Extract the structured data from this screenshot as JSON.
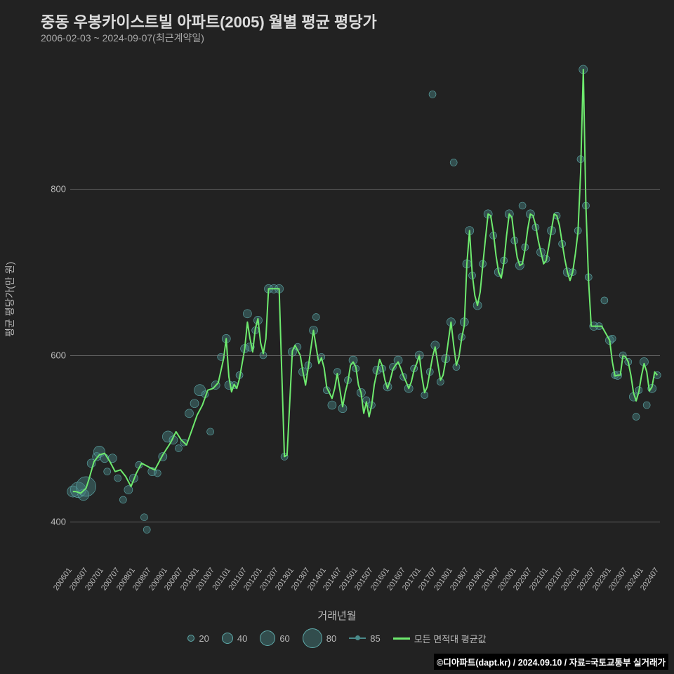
{
  "title": "중동 우봉카이스트빌 아파트(2005) 월별 평균 평당가",
  "subtitle": "2006-02-03 ~ 2024-09-07(최근계약일)",
  "ylabel": "평균 평당가(만 원)",
  "xlabel": "거래년월",
  "credit": "©디아파트(dapt.kr) / 2024.09.10 / 자료=국토교통부 실거래가",
  "chart": {
    "type": "line+scatter",
    "background": "#222222",
    "grid_color": "#888888",
    "ylim": [
      360,
      960
    ],
    "yticks": [
      400,
      600,
      800
    ],
    "x_start": "200601",
    "x_end": "202409",
    "xtick_labels": [
      "200601",
      "200607",
      "200701",
      "200707",
      "200801",
      "200807",
      "200901",
      "200907",
      "201001",
      "201007",
      "201101",
      "201107",
      "201201",
      "201207",
      "201301",
      "201307",
      "201401",
      "201407",
      "201501",
      "201507",
      "201601",
      "201607",
      "201701",
      "201707",
      "201801",
      "201807",
      "201901",
      "201907",
      "202001",
      "202007",
      "202101",
      "202107",
      "202201",
      "202207",
      "202301",
      "202307",
      "202401",
      "202407"
    ],
    "line_color": "#6eea6e",
    "scatter_color": "#4a8a8a",
    "scatter_series_label": "85",
    "line_series_label": "모든 면적대 평균값",
    "size_legend": [
      {
        "label": "20",
        "r": 5
      },
      {
        "label": "40",
        "r": 8
      },
      {
        "label": "60",
        "r": 11
      },
      {
        "label": "80",
        "r": 14
      }
    ],
    "line_points": [
      [
        1,
        436
      ],
      [
        2,
        436
      ],
      [
        4,
        434
      ],
      [
        6,
        440
      ],
      [
        7,
        450
      ],
      [
        9,
        472
      ],
      [
        11,
        480
      ],
      [
        13,
        482
      ],
      [
        15,
        472
      ],
      [
        17,
        460
      ],
      [
        19,
        462
      ],
      [
        21,
        454
      ],
      [
        23,
        442
      ],
      [
        25,
        458
      ],
      [
        27,
        470
      ],
      [
        30,
        465
      ],
      [
        32,
        462
      ],
      [
        35,
        480
      ],
      [
        38,
        495
      ],
      [
        40,
        508
      ],
      [
        42,
        498
      ],
      [
        44,
        492
      ],
      [
        46,
        510
      ],
      [
        48,
        528
      ],
      [
        50,
        540
      ],
      [
        52,
        558
      ],
      [
        54,
        560
      ],
      [
        56,
        567
      ],
      [
        58,
        596
      ],
      [
        59,
        620
      ],
      [
        60,
        574
      ],
      [
        61,
        556
      ],
      [
        62,
        565
      ],
      [
        63,
        560
      ],
      [
        64,
        572
      ],
      [
        66,
        608
      ],
      [
        67,
        640
      ],
      [
        68,
        620
      ],
      [
        69,
        604
      ],
      [
        70,
        632
      ],
      [
        71,
        644
      ],
      [
        72,
        615
      ],
      [
        73,
        602
      ],
      [
        74,
        620
      ],
      [
        75,
        680
      ],
      [
        77,
        680
      ],
      [
        79,
        680
      ],
      [
        81,
        478
      ],
      [
        82,
        480
      ],
      [
        84,
        605
      ],
      [
        85,
        612
      ],
      [
        86,
        606
      ],
      [
        87,
        600
      ],
      [
        88,
        580
      ],
      [
        89,
        564
      ],
      [
        90,
        585
      ],
      [
        91,
        608
      ],
      [
        92,
        630
      ],
      [
        93,
        610
      ],
      [
        94,
        590
      ],
      [
        95,
        597
      ],
      [
        96,
        585
      ],
      [
        97,
        561
      ],
      [
        98,
        555
      ],
      [
        99,
        548
      ],
      [
        100,
        560
      ],
      [
        101,
        578
      ],
      [
        102,
        558
      ],
      [
        103,
        538
      ],
      [
        104,
        555
      ],
      [
        105,
        568
      ],
      [
        106,
        588
      ],
      [
        107,
        592
      ],
      [
        108,
        586
      ],
      [
        109,
        564
      ],
      [
        110,
        555
      ],
      [
        111,
        530
      ],
      [
        112,
        544
      ],
      [
        113,
        526
      ],
      [
        114,
        540
      ],
      [
        115,
        565
      ],
      [
        116,
        580
      ],
      [
        117,
        595
      ],
      [
        118,
        587
      ],
      [
        119,
        570
      ],
      [
        120,
        560
      ],
      [
        121,
        570
      ],
      [
        122,
        583
      ],
      [
        123,
        588
      ],
      [
        124,
        592
      ],
      [
        125,
        584
      ],
      [
        126,
        575
      ],
      [
        127,
        568
      ],
      [
        128,
        560
      ],
      [
        129,
        568
      ],
      [
        130,
        582
      ],
      [
        131,
        590
      ],
      [
        132,
        600
      ],
      [
        133,
        574
      ],
      [
        134,
        555
      ],
      [
        135,
        562
      ],
      [
        136,
        580
      ],
      [
        137,
        598
      ],
      [
        138,
        610
      ],
      [
        139,
        590
      ],
      [
        140,
        570
      ],
      [
        141,
        576
      ],
      [
        142,
        594
      ],
      [
        143,
        618
      ],
      [
        144,
        640
      ],
      [
        145,
        612
      ],
      [
        146,
        588
      ],
      [
        147,
        598
      ],
      [
        148,
        620
      ],
      [
        149,
        636
      ],
      [
        150,
        710
      ],
      [
        151,
        750
      ],
      [
        152,
        698
      ],
      [
        153,
        672
      ],
      [
        154,
        660
      ],
      [
        155,
        676
      ],
      [
        156,
        708
      ],
      [
        157,
        740
      ],
      [
        158,
        770
      ],
      [
        159,
        768
      ],
      [
        160,
        748
      ],
      [
        161,
        720
      ],
      [
        162,
        700
      ],
      [
        163,
        693
      ],
      [
        164,
        712
      ],
      [
        165,
        744
      ],
      [
        166,
        770
      ],
      [
        167,
        766
      ],
      [
        168,
        740
      ],
      [
        169,
        718
      ],
      [
        170,
        708
      ],
      [
        171,
        710
      ],
      [
        172,
        728
      ],
      [
        173,
        752
      ],
      [
        174,
        770
      ],
      [
        175,
        768
      ],
      [
        176,
        756
      ],
      [
        177,
        738
      ],
      [
        178,
        724
      ],
      [
        179,
        710
      ],
      [
        180,
        714
      ],
      [
        181,
        732
      ],
      [
        182,
        752
      ],
      [
        183,
        770
      ],
      [
        184,
        768
      ],
      [
        185,
        756
      ],
      [
        186,
        736
      ],
      [
        187,
        716
      ],
      [
        188,
        700
      ],
      [
        189,
        690
      ],
      [
        190,
        700
      ],
      [
        191,
        722
      ],
      [
        192,
        748
      ],
      [
        193,
        820
      ],
      [
        194,
        944
      ],
      [
        195,
        780
      ],
      [
        196,
        690
      ],
      [
        197,
        635
      ],
      [
        198,
        635
      ],
      [
        199,
        635
      ],
      [
        200,
        635
      ],
      [
        201,
        635
      ],
      [
        204,
        618
      ],
      [
        205,
        592
      ],
      [
        206,
        575
      ],
      [
        207,
        576
      ],
      [
        208,
        576
      ],
      [
        209,
        600
      ],
      [
        210,
        598
      ],
      [
        211,
        592
      ],
      [
        212,
        576
      ],
      [
        213,
        555
      ],
      [
        214,
        545
      ],
      [
        215,
        556
      ],
      [
        216,
        575
      ],
      [
        217,
        590
      ],
      [
        218,
        580
      ],
      [
        219,
        557
      ],
      [
        220,
        562
      ],
      [
        221,
        580
      ],
      [
        222,
        576
      ]
    ],
    "scatter_points": [
      [
        1,
        436,
        8
      ],
      [
        3,
        438,
        11
      ],
      [
        5,
        432,
        8
      ],
      [
        6,
        442,
        14
      ],
      [
        8,
        470,
        6
      ],
      [
        10,
        478,
        6
      ],
      [
        11,
        484,
        8
      ],
      [
        13,
        476,
        6
      ],
      [
        14,
        460,
        5
      ],
      [
        16,
        476,
        6
      ],
      [
        18,
        452,
        5
      ],
      [
        20,
        426,
        5
      ],
      [
        22,
        438,
        6
      ],
      [
        24,
        452,
        6
      ],
      [
        26,
        468,
        5
      ],
      [
        28,
        405,
        5
      ],
      [
        29,
        390,
        5
      ],
      [
        31,
        460,
        6
      ],
      [
        33,
        458,
        5
      ],
      [
        35,
        478,
        6
      ],
      [
        37,
        502,
        8
      ],
      [
        39,
        498,
        6
      ],
      [
        41,
        488,
        5
      ],
      [
        43,
        495,
        5
      ],
      [
        45,
        530,
        6
      ],
      [
        47,
        542,
        6
      ],
      [
        49,
        558,
        8
      ],
      [
        51,
        553,
        5
      ],
      [
        53,
        508,
        5
      ],
      [
        55,
        564,
        6
      ],
      [
        57,
        598,
        5
      ],
      [
        59,
        620,
        6
      ],
      [
        60,
        564,
        6
      ],
      [
        62,
        564,
        5
      ],
      [
        64,
        576,
        5
      ],
      [
        66,
        608,
        6
      ],
      [
        67,
        650,
        6
      ],
      [
        68,
        610,
        6
      ],
      [
        70,
        630,
        5
      ],
      [
        71,
        642,
        6
      ],
      [
        73,
        600,
        5
      ],
      [
        75,
        680,
        6
      ],
      [
        77,
        680,
        6
      ],
      [
        79,
        680,
        6
      ],
      [
        81,
        478,
        5
      ],
      [
        84,
        604,
        6
      ],
      [
        86,
        610,
        5
      ],
      [
        88,
        580,
        6
      ],
      [
        90,
        588,
        5
      ],
      [
        92,
        630,
        6
      ],
      [
        93,
        646,
        5
      ],
      [
        95,
        598,
        5
      ],
      [
        97,
        558,
        5
      ],
      [
        99,
        540,
        6
      ],
      [
        101,
        580,
        5
      ],
      [
        103,
        536,
        6
      ],
      [
        105,
        570,
        5
      ],
      [
        107,
        594,
        6
      ],
      [
        108,
        584,
        5
      ],
      [
        110,
        555,
        6
      ],
      [
        112,
        546,
        5
      ],
      [
        114,
        540,
        5
      ],
      [
        116,
        582,
        6
      ],
      [
        118,
        584,
        5
      ],
      [
        120,
        562,
        6
      ],
      [
        122,
        586,
        5
      ],
      [
        124,
        594,
        6
      ],
      [
        126,
        574,
        5
      ],
      [
        128,
        560,
        6
      ],
      [
        130,
        584,
        5
      ],
      [
        132,
        600,
        6
      ],
      [
        134,
        552,
        5
      ],
      [
        136,
        580,
        5
      ],
      [
        138,
        612,
        6
      ],
      [
        140,
        568,
        5
      ],
      [
        142,
        596,
        6
      ],
      [
        144,
        640,
        6
      ],
      [
        146,
        586,
        5
      ],
      [
        148,
        622,
        5
      ],
      [
        149,
        640,
        6
      ],
      [
        150,
        710,
        6
      ],
      [
        151,
        750,
        6
      ],
      [
        152,
        696,
        5
      ],
      [
        154,
        660,
        6
      ],
      [
        156,
        710,
        5
      ],
      [
        158,
        770,
        6
      ],
      [
        160,
        744,
        5
      ],
      [
        162,
        700,
        6
      ],
      [
        164,
        714,
        5
      ],
      [
        166,
        770,
        6
      ],
      [
        168,
        738,
        5
      ],
      [
        170,
        708,
        6
      ],
      [
        171,
        780,
        5
      ],
      [
        172,
        730,
        5
      ],
      [
        174,
        770,
        6
      ],
      [
        176,
        754,
        5
      ],
      [
        178,
        724,
        6
      ],
      [
        180,
        716,
        5
      ],
      [
        182,
        750,
        6
      ],
      [
        184,
        768,
        5
      ],
      [
        186,
        734,
        5
      ],
      [
        188,
        700,
        6
      ],
      [
        190,
        700,
        5
      ],
      [
        192,
        750,
        5
      ],
      [
        193,
        836,
        5
      ],
      [
        194,
        944,
        6
      ],
      [
        195,
        780,
        5
      ],
      [
        196,
        694,
        5
      ],
      [
        198,
        635,
        6
      ],
      [
        200,
        635,
        5
      ],
      [
        202,
        666,
        5
      ],
      [
        204,
        618,
        6
      ],
      [
        205,
        620,
        5
      ],
      [
        206,
        576,
        5
      ],
      [
        207,
        576,
        6
      ],
      [
        209,
        600,
        5
      ],
      [
        211,
        592,
        5
      ],
      [
        213,
        550,
        6
      ],
      [
        214,
        526,
        5
      ],
      [
        215,
        558,
        5
      ],
      [
        217,
        592,
        6
      ],
      [
        218,
        540,
        5
      ],
      [
        220,
        560,
        6
      ],
      [
        222,
        576,
        5
      ],
      [
        137,
        914,
        5
      ],
      [
        145,
        832,
        5
      ]
    ]
  }
}
